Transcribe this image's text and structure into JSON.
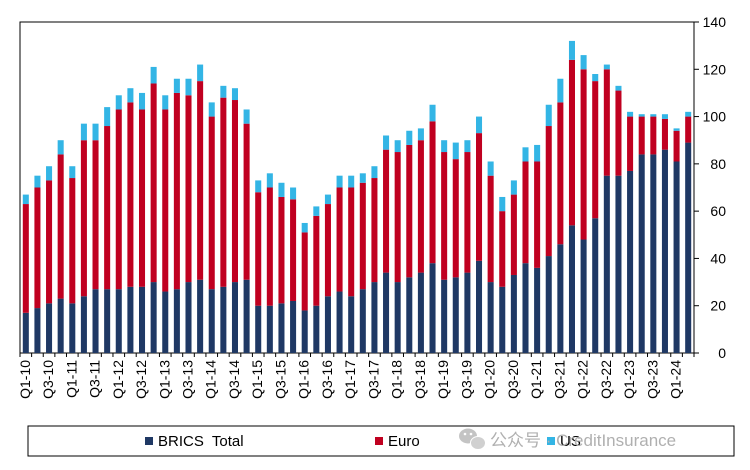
{
  "chart_data": {
    "type": "bar",
    "stacked": true,
    "categories": [
      "Q1-10",
      "Q2-10",
      "Q3-10",
      "Q4-10",
      "Q1-11",
      "Q2-11",
      "Q3-11",
      "Q4-11",
      "Q1-12",
      "Q2-12",
      "Q3-12",
      "Q4-12",
      "Q1-13",
      "Q2-13",
      "Q3-13",
      "Q4-13",
      "Q1-14",
      "Q2-14",
      "Q3-14",
      "Q4-14",
      "Q1-15",
      "Q2-15",
      "Q3-15",
      "Q4-15",
      "Q1-16",
      "Q2-16",
      "Q3-16",
      "Q4-16",
      "Q1-17",
      "Q2-17",
      "Q3-17",
      "Q4-17",
      "Q1-18",
      "Q2-18",
      "Q3-18",
      "Q4-18",
      "Q1-19",
      "Q2-19",
      "Q3-19",
      "Q4-19",
      "Q1-20",
      "Q2-20",
      "Q3-20",
      "Q4-20",
      "Q1-21",
      "Q2-21",
      "Q3-21",
      "Q4-21",
      "Q1-22",
      "Q2-22",
      "Q3-22",
      "Q4-22",
      "Q1-23",
      "Q2-23",
      "Q3-23",
      "Q4-23",
      "Q1-24",
      "Q2-24"
    ],
    "visible_tick_labels": [
      "Q1-10",
      "Q3-10",
      "Q1-11",
      "Q3-11",
      "Q1-12",
      "Q3-12",
      "Q1-13",
      "Q3-13",
      "Q1-14",
      "Q3-14",
      "Q1-15",
      "Q3-15",
      "Q1-16",
      "Q3-16",
      "Q1-17",
      "Q3-17",
      "Q1-18",
      "Q3-18",
      "Q1-19",
      "Q3-19",
      "Q1-20",
      "Q3-20",
      "Q1-21",
      "Q3-21",
      "Q1-22",
      "Q3-22",
      "Q1-23",
      "Q3-23",
      "Q1-24"
    ],
    "series": [
      {
        "name": "BRICS  Total",
        "color": "#1f3864",
        "values": [
          17,
          19,
          21,
          23,
          21,
          24,
          27,
          27,
          27,
          28,
          28,
          30,
          26,
          27,
          30,
          31,
          27,
          28,
          30,
          31,
          20,
          20,
          21,
          22,
          18,
          20,
          24,
          26,
          24,
          27,
          30,
          34,
          30,
          32,
          34,
          38,
          31,
          32,
          34,
          39,
          30,
          28,
          33,
          38,
          36,
          41,
          46,
          54,
          48,
          57,
          75,
          75,
          77,
          84,
          84,
          86,
          81,
          89
        ]
      },
      {
        "name": "Euro",
        "color": "#c00020",
        "values": [
          46,
          51,
          52,
          61,
          53,
          66,
          63,
          69,
          76,
          78,
          75,
          84,
          77,
          83,
          79,
          84,
          73,
          80,
          77,
          66,
          48,
          50,
          45,
          43,
          33,
          38,
          39,
          44,
          46,
          45,
          44,
          52,
          55,
          56,
          56,
          60,
          54,
          50,
          51,
          54,
          45,
          32,
          34,
          43,
          45,
          55,
          60,
          70,
          72,
          58,
          45,
          36,
          23,
          16,
          16,
          13,
          13,
          11
        ]
      },
      {
        "name": "US",
        "color": "#33b5e5",
        "values": [
          4,
          5,
          6,
          6,
          5,
          7,
          7,
          8,
          6,
          6,
          7,
          7,
          6,
          6,
          7,
          7,
          6,
          5,
          5,
          6,
          5,
          6,
          6,
          5,
          4,
          4,
          4,
          5,
          5,
          4,
          5,
          6,
          5,
          6,
          5,
          7,
          5,
          7,
          5,
          7,
          6,
          6,
          6,
          6,
          7,
          9,
          10,
          8,
          6,
          3,
          2,
          2,
          2,
          1,
          1,
          2,
          1,
          2
        ]
      }
    ],
    "xlabel": "",
    "ylabel": "",
    "ylim": [
      0,
      140
    ],
    "yticks": [
      0,
      20,
      40,
      60,
      80,
      100,
      120,
      140
    ],
    "y_axis_side": "right",
    "grid": false,
    "legend_position": "bottom"
  },
  "watermark": {
    "text": "公众号 · CreditInsurance",
    "icon": "wechat-icon"
  }
}
